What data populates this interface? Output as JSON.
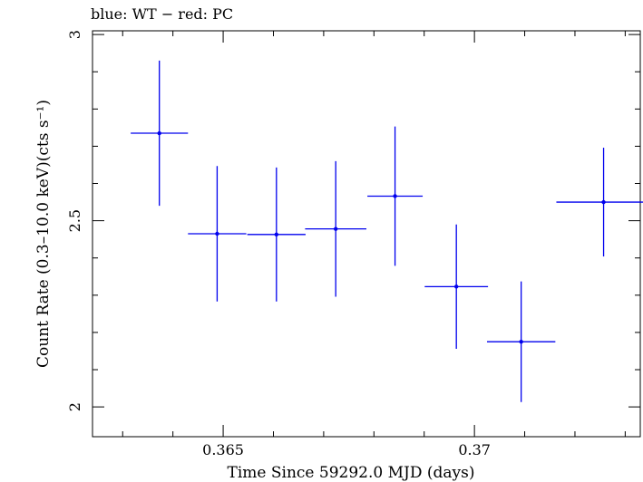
{
  "chart_data": {
    "type": "scatter",
    "title": "blue: WT − red: PC",
    "xlabel": "Time Since 59292.0 MJD (days)",
    "ylabel": "Count Rate (0.3–10.0 keV)(cts s⁻¹)",
    "xlim": [
      0.3624,
      0.3733
    ],
    "ylim": [
      1.92,
      3.01
    ],
    "xticks": [
      0.365,
      0.37
    ],
    "xtick_labels": [
      "0.365",
      "0.37"
    ],
    "yticks": [
      2,
      2.5,
      3
    ],
    "ytick_labels": [
      "2",
      "2.5",
      "3"
    ],
    "grid": false,
    "color": "#0000ee",
    "series": [
      {
        "points": [
          {
            "x": 0.36373,
            "xerr": 0.00057,
            "y": 2.735,
            "yerr": 0.195
          },
          {
            "x": 0.36488,
            "xerr": 0.00058,
            "y": 2.465,
            "yerr": 0.182
          },
          {
            "x": 0.36606,
            "xerr": 0.00058,
            "y": 2.463,
            "yerr": 0.18
          },
          {
            "x": 0.36724,
            "xerr": 0.00061,
            "y": 2.478,
            "yerr": 0.182
          },
          {
            "x": 0.36842,
            "xerr": 0.00055,
            "y": 2.566,
            "yerr": 0.187
          },
          {
            "x": 0.36964,
            "xerr": 0.00063,
            "y": 2.323,
            "yerr": 0.167
          },
          {
            "x": 0.37093,
            "xerr": 0.00068,
            "y": 2.175,
            "yerr": 0.162
          },
          {
            "x": 0.37257,
            "xerr": 0.00094,
            "y": 2.55,
            "yerr": 0.146
          }
        ]
      }
    ]
  }
}
